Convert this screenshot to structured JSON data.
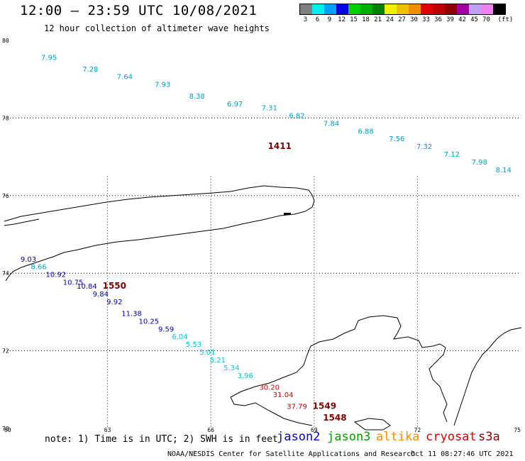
{
  "title": "12:00 — 23:59 UTC 10/08/2021",
  "subtitle": "12 hour collection of altimeter wave heights",
  "legend": {
    "colors": [
      "#808080",
      "#00f0f0",
      "#00a0ff",
      "#0000e0",
      "#00d000",
      "#00b000",
      "#008000",
      "#f0f000",
      "#f0c000",
      "#f09000",
      "#e00000",
      "#c00000",
      "#900000",
      "#a000a0",
      "#c0a0f0",
      "#f080f0",
      "#000000"
    ],
    "labels": [
      "3",
      "6",
      "9",
      "12",
      "15",
      "18",
      "21",
      "24",
      "27",
      "30",
      "33",
      "36",
      "39",
      "42",
      "45",
      "70",
      "(ft)"
    ]
  },
  "lat_labels": [
    "80",
    "78",
    "76",
    "74",
    "72",
    "70"
  ],
  "lon_labels": [
    "60",
    "63",
    "66",
    "69",
    "72",
    "75"
  ],
  "note": "note: 1) Time is in UTC; 2) SWH is in feet",
  "satellites": [
    "jason2",
    "jason3",
    "altika",
    "cryosat",
    "s3a"
  ],
  "satellite_colors": [
    "#0000e0",
    "#00a000",
    "#ff8c00",
    "#e00000",
    "#900000"
  ],
  "credit": "NOAA/NESDIS Center for Satellite Applications and Research",
  "timestamp": "Oct 11 08:27:46 UTC 2021",
  "chart_data": {
    "type": "scatter",
    "title": "12:00 — 23:59 UTC 10/08/2021",
    "subtitle": "12 hour collection of altimeter wave heights",
    "xlabel": "",
    "ylabel": "",
    "xlim": [
      60,
      75
    ],
    "ylim": [
      70,
      80
    ],
    "x_ticks": [
      60,
      63,
      66,
      69,
      72,
      75
    ],
    "y_ticks": [
      70,
      72,
      74,
      76,
      78,
      80
    ],
    "grid": true,
    "tracks": [
      {
        "time_label": "1411",
        "label_at": [
          68.0,
          77.2
        ],
        "points": [
          {
            "lon": 61.3,
            "lat": 79.5,
            "swh": 7.95,
            "color": "#00a0d0"
          },
          {
            "lon": 62.5,
            "lat": 79.2,
            "swh": 7.28,
            "color": "#00a0d0"
          },
          {
            "lon": 63.5,
            "lat": 79.0,
            "swh": 7.64,
            "color": "#00a0d0"
          },
          {
            "lon": 64.6,
            "lat": 78.8,
            "swh": 7.93,
            "color": "#00a0d0"
          },
          {
            "lon": 65.6,
            "lat": 78.5,
            "swh": 8.38,
            "color": "#00a0d0"
          },
          {
            "lon": 66.7,
            "lat": 78.3,
            "swh": 6.97,
            "color": "#00a0d0"
          },
          {
            "lon": 67.7,
            "lat": 78.2,
            "swh": 7.31,
            "color": "#00a0d0"
          },
          {
            "lon": 68.5,
            "lat": 78.0,
            "swh": 6.82,
            "color": "#00a0d0"
          },
          {
            "lon": 69.5,
            "lat": 77.8,
            "swh": 7.84,
            "color": "#00a0d0"
          },
          {
            "lon": 70.5,
            "lat": 77.6,
            "swh": 6.88,
            "color": "#00a0d0"
          },
          {
            "lon": 71.4,
            "lat": 77.4,
            "swh": 7.56,
            "color": "#00a0d0"
          },
          {
            "lon": 72.2,
            "lat": 77.2,
            "swh": 7.32,
            "color": "#00a0d0"
          },
          {
            "lon": 73.0,
            "lat": 77.0,
            "swh": 7.12,
            "color": "#00a0d0"
          },
          {
            "lon": 73.8,
            "lat": 76.8,
            "swh": 7.98,
            "color": "#00a0d0"
          },
          {
            "lon": 74.5,
            "lat": 76.6,
            "swh": 8.14,
            "color": "#00a0d0"
          }
        ]
      },
      {
        "time_label": "1550",
        "label_at": [
          63.2,
          73.6
        ],
        "points": [
          {
            "lon": 60.7,
            "lat": 74.3,
            "swh": 9.03,
            "color": "#0000b0"
          },
          {
            "lon": 61.0,
            "lat": 74.1,
            "swh": 8.66,
            "color": "#00a0d0"
          },
          {
            "lon": 61.5,
            "lat": 73.9,
            "swh": 10.92,
            "color": "#0000b0"
          },
          {
            "lon": 62.0,
            "lat": 73.7,
            "swh": 10.75,
            "color": "#0000b0"
          },
          {
            "lon": 62.4,
            "lat": 73.6,
            "swh": 10.84,
            "color": "#0000b0"
          },
          {
            "lon": 62.8,
            "lat": 73.4,
            "swh": 9.84,
            "color": "#0000b0"
          },
          {
            "lon": 63.2,
            "lat": 73.2,
            "swh": 9.92,
            "color": "#0000b0"
          },
          {
            "lon": 63.7,
            "lat": 72.9,
            "swh": 11.38,
            "color": "#0000b0"
          },
          {
            "lon": 64.2,
            "lat": 72.7,
            "swh": 10.25,
            "color": "#0000b0"
          },
          {
            "lon": 64.7,
            "lat": 72.5,
            "swh": 9.59,
            "color": "#0000b0"
          },
          {
            "lon": 65.1,
            "lat": 72.3,
            "swh": 6.04,
            "color": "#00c8d8"
          },
          {
            "lon": 65.5,
            "lat": 72.1,
            "swh": 5.53,
            "color": "#00c8d8"
          },
          {
            "lon": 65.9,
            "lat": 71.9,
            "swh": 5.01,
            "color": "#00c8d8"
          },
          {
            "lon": 66.2,
            "lat": 71.7,
            "swh": 5.21,
            "color": "#00c8d8"
          },
          {
            "lon": 66.6,
            "lat": 71.5,
            "swh": 5.34,
            "color": "#00c8d8"
          },
          {
            "lon": 67.0,
            "lat": 71.3,
            "swh": 3.96,
            "color": "#00c8d8"
          }
        ]
      },
      {
        "time_label": "1549",
        "label_at": [
          69.3,
          70.5
        ],
        "points": [
          {
            "lon": 67.7,
            "lat": 71.0,
            "swh": 30.2,
            "color": "#d00000"
          },
          {
            "lon": 68.1,
            "lat": 70.8,
            "swh": 31.04,
            "color": "#d00000"
          }
        ]
      },
      {
        "time_label": "1548",
        "label_at": [
          69.6,
          70.2
        ],
        "points": [
          {
            "lon": 68.5,
            "lat": 70.5,
            "swh": 37.79,
            "color": "#d00000"
          }
        ]
      }
    ]
  }
}
